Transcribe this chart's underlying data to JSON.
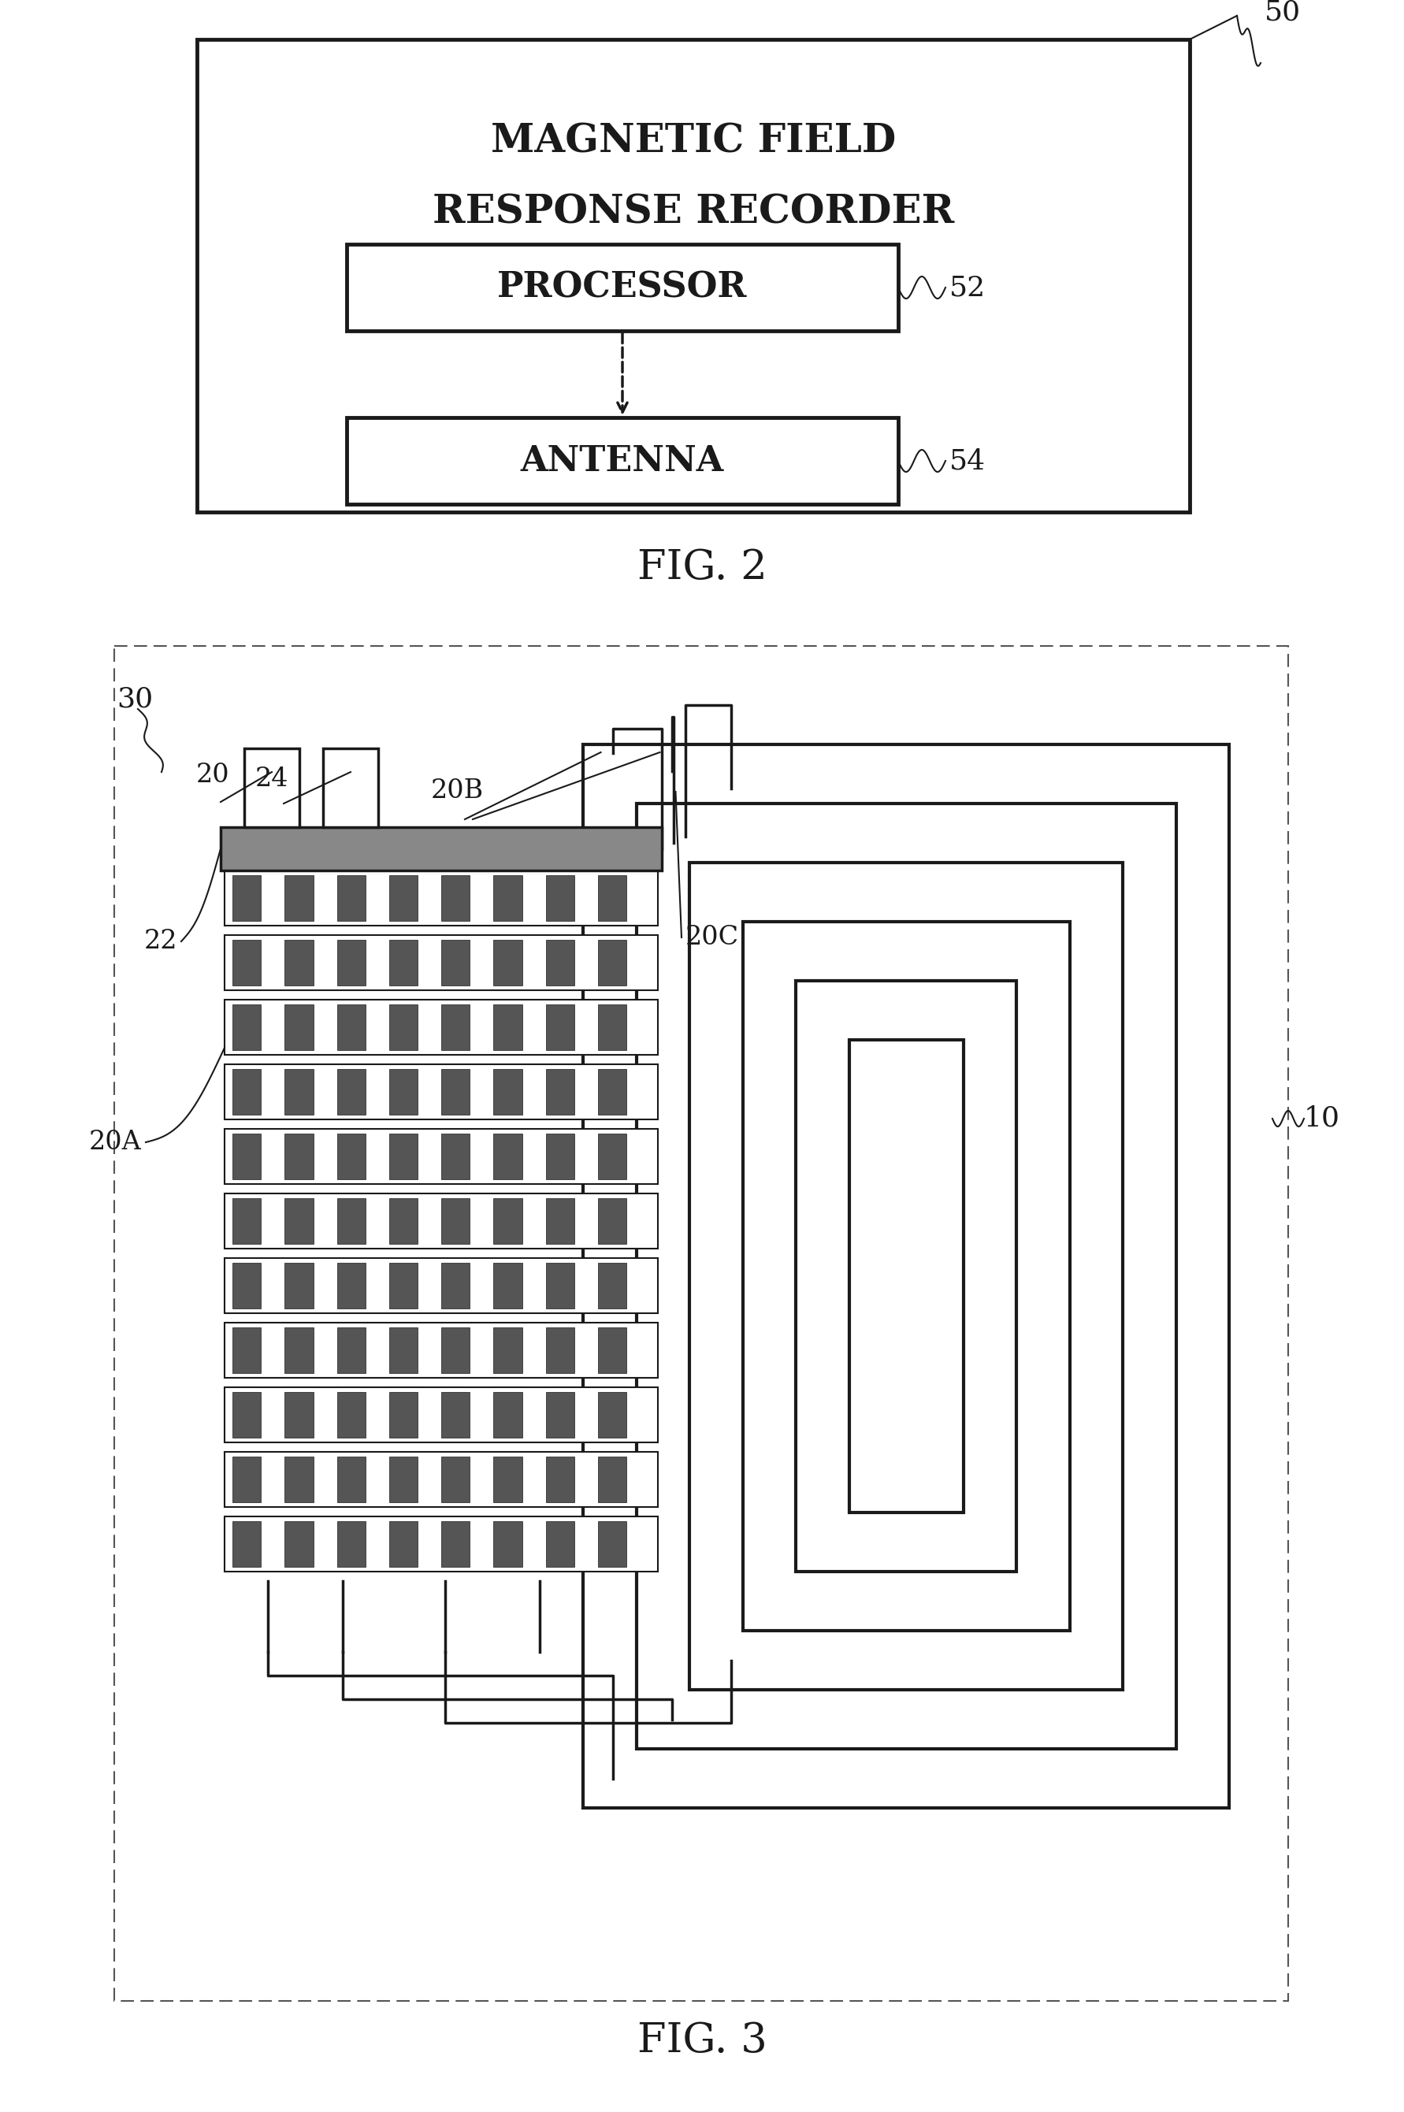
{
  "bg_color": "#ffffff",
  "fig_width": 17.82,
  "fig_height": 26.81,
  "lc": "#1a1a1a",
  "text_mfrr1": "MAGNETIC FIELD",
  "text_mfrr2": "RESPONSE RECORDER",
  "text_processor": "PROCESSOR",
  "text_antenna": "ANTENNA",
  "label_50": "50",
  "label_52": "52",
  "label_54": "54",
  "label_30": "30",
  "label_10": "10",
  "label_20": "20",
  "label_20A": "20A",
  "label_20B": "20B",
  "label_20C": "20C",
  "label_22": "22",
  "label_24": "24",
  "fig2_caption": "FIG. 2",
  "fig3_caption": "FIG. 3"
}
